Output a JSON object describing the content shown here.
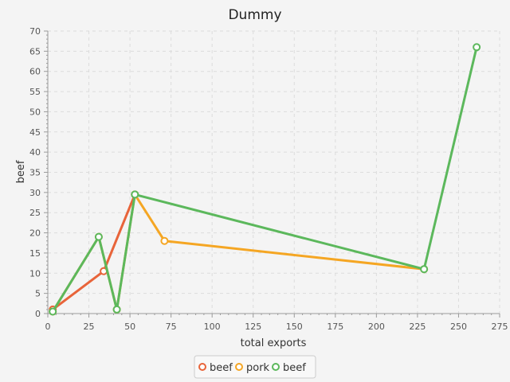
{
  "chart_data": {
    "type": "line",
    "title": "Dummy",
    "xlabel": "total exports",
    "ylabel": "beef",
    "xlim": [
      0,
      275
    ],
    "ylim": [
      0,
      70
    ],
    "xticks": [
      0,
      25,
      50,
      75,
      100,
      125,
      150,
      175,
      200,
      225,
      250,
      275
    ],
    "yticks": [
      0,
      5,
      10,
      15,
      20,
      25,
      30,
      35,
      40,
      45,
      50,
      55,
      60,
      65,
      70
    ],
    "grid": true,
    "legend_position": "bottom-center",
    "series": [
      {
        "name": "beef",
        "color": "#e8643a",
        "x": [
          3,
          34,
          53
        ],
        "y": [
          1,
          10.5,
          29.5
        ]
      },
      {
        "name": "pork",
        "color": "#f5a623",
        "x": [
          3,
          31,
          42,
          53,
          71,
          229
        ],
        "y": [
          0.5,
          19,
          1,
          29.5,
          18,
          11
        ]
      },
      {
        "name": "beef",
        "color": "#5cb85c",
        "x": [
          3,
          31,
          42,
          53,
          229,
          261
        ],
        "y": [
          0.5,
          19,
          1,
          29.5,
          11,
          66
        ]
      }
    ]
  }
}
